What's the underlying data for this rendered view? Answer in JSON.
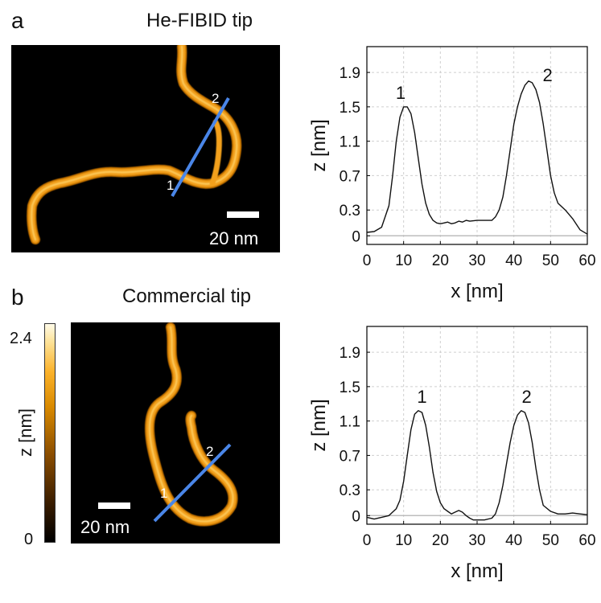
{
  "panel_a": {
    "letter": "a",
    "title": "He-FIBID tip",
    "scale_bar": "20 nm",
    "marker_1": "1",
    "marker_2": "2"
  },
  "panel_b": {
    "letter": "b",
    "title": "Commercial tip",
    "scale_bar": "20 nm",
    "marker_1": "1",
    "marker_2": "2"
  },
  "colorbar": {
    "max_label": "2.4",
    "min_label": "0",
    "title": "z [nm]"
  },
  "colors": {
    "line_cut": "#4a86e8",
    "strand": "#f2a01a",
    "curve": "#111111",
    "grid": "#cfcfcf"
  },
  "chart_data": [
    {
      "type": "line",
      "title": "",
      "xlabel": "x [nm]",
      "ylabel": "z [nm]",
      "xlim": [
        0,
        60
      ],
      "ylim": [
        -0.1,
        2.2
      ],
      "xticks": [
        0,
        10,
        20,
        30,
        40,
        50,
        60
      ],
      "yticks": [
        0,
        0.3,
        0.7,
        1.1,
        1.5,
        1.9
      ],
      "grid": true,
      "series": [
        {
          "name": "He-FIBID tip profile",
          "x": [
            0,
            2,
            4,
            6,
            7,
            8,
            9,
            10,
            11,
            12,
            13,
            14,
            15,
            16,
            17,
            18,
            19,
            20,
            21,
            22,
            23,
            24,
            25,
            26,
            27,
            28,
            30,
            32,
            34,
            35,
            36,
            37,
            38,
            39,
            40,
            41,
            42,
            43,
            44,
            45,
            46,
            47,
            48,
            49,
            50,
            51,
            52,
            54,
            56,
            58,
            60
          ],
          "y": [
            0.04,
            0.05,
            0.1,
            0.35,
            0.7,
            1.1,
            1.38,
            1.5,
            1.5,
            1.42,
            1.2,
            0.9,
            0.6,
            0.38,
            0.25,
            0.18,
            0.15,
            0.14,
            0.15,
            0.16,
            0.14,
            0.15,
            0.17,
            0.16,
            0.18,
            0.17,
            0.18,
            0.18,
            0.18,
            0.22,
            0.3,
            0.45,
            0.7,
            1.0,
            1.3,
            1.5,
            1.65,
            1.75,
            1.8,
            1.78,
            1.7,
            1.55,
            1.3,
            1.0,
            0.7,
            0.5,
            0.38,
            0.3,
            0.2,
            0.07,
            0.02
          ]
        }
      ],
      "labels": [
        {
          "text": "1",
          "x": 9.2,
          "y": 1.59
        },
        {
          "text": "2",
          "x": 49.2,
          "y": 1.8
        }
      ]
    },
    {
      "type": "line",
      "title": "",
      "xlabel": "x [nm]",
      "ylabel": "z [nm]",
      "xlim": [
        0,
        60
      ],
      "ylim": [
        -0.1,
        2.2
      ],
      "xticks": [
        0,
        10,
        20,
        30,
        40,
        50,
        60
      ],
      "yticks": [
        0,
        0.3,
        0.7,
        1.1,
        1.5,
        1.9
      ],
      "grid": true,
      "series": [
        {
          "name": "Commercial tip profile",
          "x": [
            0,
            2,
            4,
            6,
            8,
            9,
            10,
            11,
            12,
            13,
            14,
            15,
            16,
            17,
            18,
            19,
            20,
            21,
            22,
            23,
            24,
            25,
            26,
            27,
            28,
            29,
            30,
            32,
            34,
            35,
            36,
            37,
            38,
            39,
            40,
            41,
            42,
            43,
            44,
            45,
            46,
            47,
            48,
            50,
            52,
            54,
            56,
            58,
            60
          ],
          "y": [
            -0.02,
            -0.04,
            -0.02,
            0.0,
            0.08,
            0.18,
            0.4,
            0.7,
            1.0,
            1.18,
            1.22,
            1.2,
            1.05,
            0.8,
            0.5,
            0.28,
            0.15,
            0.08,
            0.05,
            0.02,
            0.04,
            0.06,
            0.04,
            0.0,
            -0.03,
            -0.05,
            -0.05,
            -0.05,
            -0.03,
            0.02,
            0.15,
            0.35,
            0.6,
            0.85,
            1.05,
            1.17,
            1.22,
            1.2,
            1.08,
            0.85,
            0.55,
            0.3,
            0.12,
            0.05,
            0.02,
            0.02,
            0.03,
            0.02,
            0.01
          ]
        }
      ],
      "labels": [
        {
          "text": "1",
          "x": 15.0,
          "y": 1.31
        },
        {
          "text": "2",
          "x": 43.5,
          "y": 1.31
        }
      ]
    }
  ]
}
